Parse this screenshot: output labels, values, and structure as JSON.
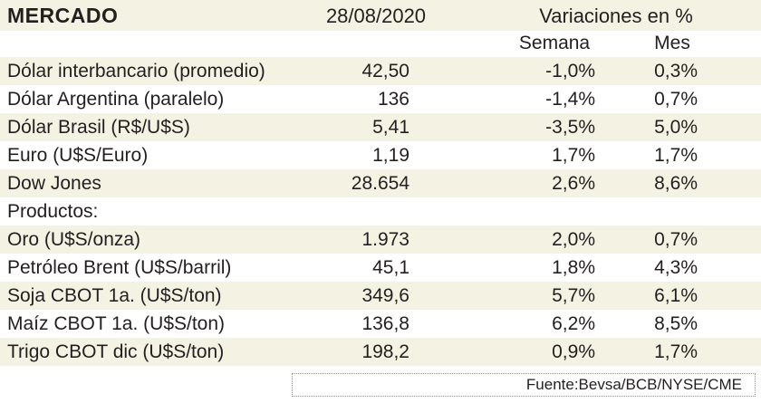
{
  "header": {
    "title": "MERCADO",
    "date": "28/08/2020",
    "variations": "Variaciones en %"
  },
  "columns": {
    "week": "Semana",
    "month": "Mes"
  },
  "table": {
    "rows": [
      [
        "Dólar interbancario (promedio)",
        "42,50",
        "-1,0%",
        "0,3%"
      ],
      [
        "Dólar Argentina (paralelo)",
        "136",
        "-1,4%",
        "0,7%"
      ],
      [
        "Dólar Brasil (R$/U$S)",
        "5,41",
        "-3,5%",
        "5,0%"
      ],
      [
        "Euro (U$S/Euro)",
        "1,19",
        "1,7%",
        "1,7%"
      ],
      [
        "Dow Jones",
        "28.654",
        "2,6%",
        "8,6%"
      ],
      [
        "Productos:"
      ],
      [
        "Oro (U$S/onza)",
        "1.973",
        "2,0%",
        "0,7%"
      ],
      [
        "Petróleo Brent (U$S/barril)",
        "45,1",
        "1,8%",
        "4,3%"
      ],
      [
        "Soja CBOT 1a. (U$S/ton)",
        "349,6",
        "5,7%",
        "6,1%"
      ],
      [
        "Maíz CBOT 1a. (U$S/ton)",
        "136,8",
        "6,2%",
        "8,5%"
      ],
      [
        "Trigo CBOT dic (U$S/ton)",
        "198,2",
        "0,9%",
        "1,7%"
      ]
    ]
  },
  "footer": {
    "source": "Fuente:Bevsa/BCB/NYSE/CME"
  }
}
